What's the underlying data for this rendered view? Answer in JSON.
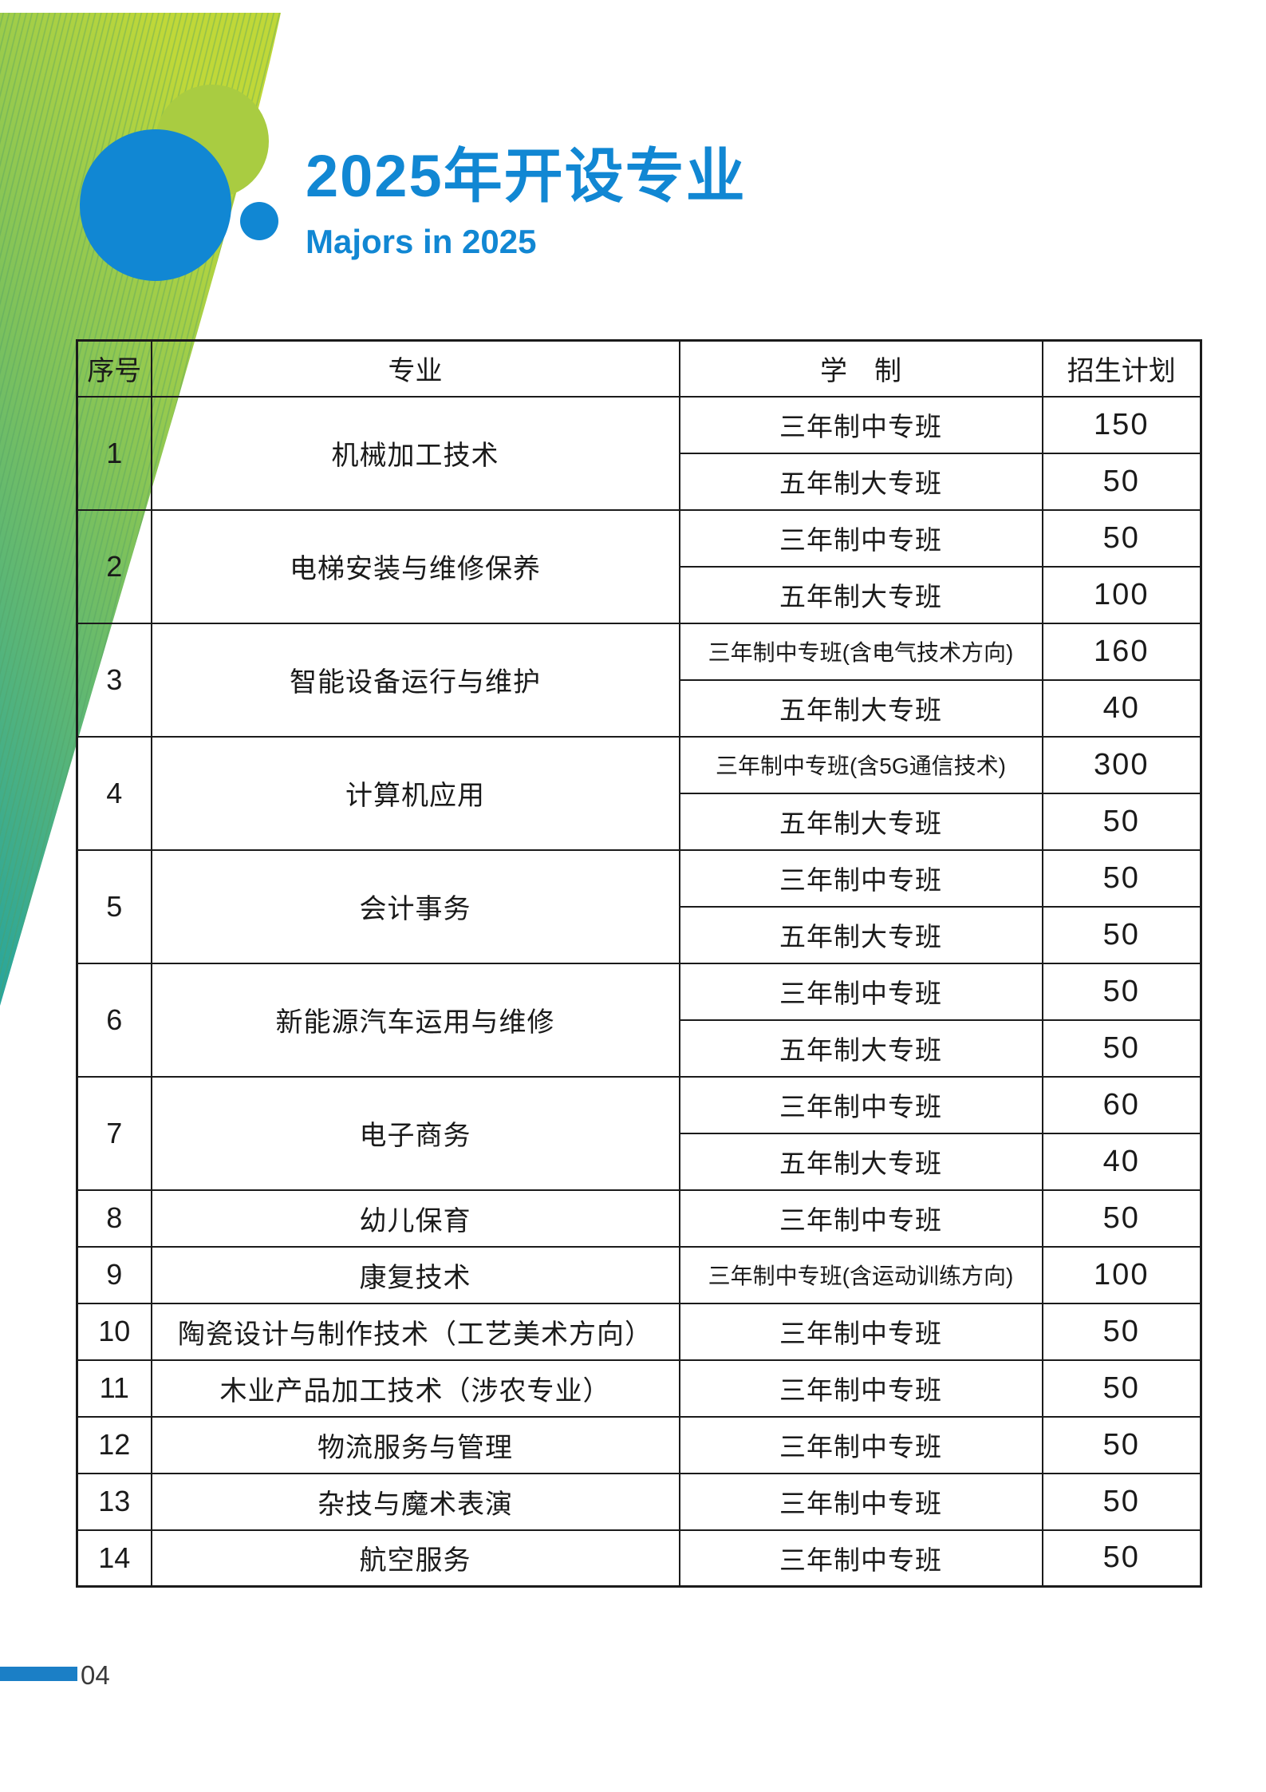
{
  "page": {
    "title_cn": "2025年开设专业",
    "title_en": "Majors in 2025",
    "page_number": "04"
  },
  "colors": {
    "accent_blue": "#1187d3",
    "footer_bar_blue": "#1b7fc6",
    "decor_green_light": "#a9cc41",
    "decor_gradient_top": "#c0d838",
    "decor_gradient_mid": "#7ec25b",
    "decor_gradient_bottom": "#28a59d",
    "table_border": "#1b1b1b"
  },
  "table": {
    "headers": [
      "序号",
      "专业",
      "学　制",
      "招生计划"
    ],
    "rows": [
      {
        "no": "1",
        "major": "机械加工技术",
        "programs": [
          {
            "type": "三年制中专班",
            "plan": "150"
          },
          {
            "type": "五年制大专班",
            "plan": "50"
          }
        ]
      },
      {
        "no": "2",
        "major": "电梯安装与维修保养",
        "programs": [
          {
            "type": "三年制中专班",
            "plan": "50"
          },
          {
            "type": "五年制大专班",
            "plan": "100"
          }
        ]
      },
      {
        "no": "3",
        "major": "智能设备运行与维护",
        "programs": [
          {
            "type": "三年制中专班(含电气技术方向)",
            "plan": "160"
          },
          {
            "type": "五年制大专班",
            "plan": "40"
          }
        ]
      },
      {
        "no": "4",
        "major": "计算机应用",
        "programs": [
          {
            "type": "三年制中专班(含5G通信技术)",
            "plan": "300"
          },
          {
            "type": "五年制大专班",
            "plan": "50"
          }
        ]
      },
      {
        "no": "5",
        "major": "会计事务",
        "programs": [
          {
            "type": "三年制中专班",
            "plan": "50"
          },
          {
            "type": "五年制大专班",
            "plan": "50"
          }
        ]
      },
      {
        "no": "6",
        "major": "新能源汽车运用与维修",
        "programs": [
          {
            "type": "三年制中专班",
            "plan": "50"
          },
          {
            "type": "五年制大专班",
            "plan": "50"
          }
        ]
      },
      {
        "no": "7",
        "major": "电子商务",
        "programs": [
          {
            "type": "三年制中专班",
            "plan": "60"
          },
          {
            "type": "五年制大专班",
            "plan": "40"
          }
        ]
      },
      {
        "no": "8",
        "major": "幼儿保育",
        "programs": [
          {
            "type": "三年制中专班",
            "plan": "50"
          }
        ]
      },
      {
        "no": "9",
        "major": "康复技术",
        "programs": [
          {
            "type": "三年制中专班(含运动训练方向)",
            "plan": "100"
          }
        ]
      },
      {
        "no": "10",
        "major": "陶瓷设计与制作技术（工艺美术方向）",
        "programs": [
          {
            "type": "三年制中专班",
            "plan": "50"
          }
        ]
      },
      {
        "no": "11",
        "major": "木业产品加工技术（涉农专业）",
        "programs": [
          {
            "type": "三年制中专班",
            "plan": "50"
          }
        ]
      },
      {
        "no": "12",
        "major": "物流服务与管理",
        "programs": [
          {
            "type": "三年制中专班",
            "plan": "50"
          }
        ]
      },
      {
        "no": "13",
        "major": "杂技与魔术表演",
        "programs": [
          {
            "type": "三年制中专班",
            "plan": "50"
          }
        ]
      },
      {
        "no": "14",
        "major": "航空服务",
        "programs": [
          {
            "type": "三年制中专班",
            "plan": "50"
          }
        ]
      }
    ]
  }
}
